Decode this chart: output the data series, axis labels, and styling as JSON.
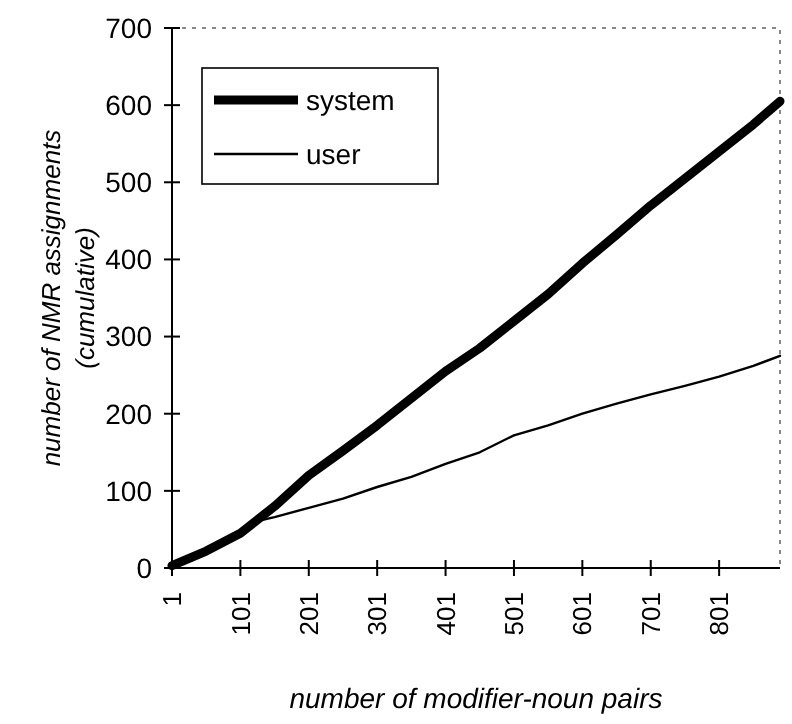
{
  "chart_data": {
    "type": "line",
    "xlabel": "number of modifier-noun pairs",
    "ylabel": "number of NMR assignments\n(cumulative)",
    "xlim": [
      1,
      890
    ],
    "xticks": [
      1,
      101,
      201,
      301,
      401,
      501,
      601,
      701,
      801
    ],
    "ylim": [
      0,
      700
    ],
    "yticks": [
      0,
      100,
      200,
      300,
      400,
      500,
      600,
      700
    ],
    "legend": "top left",
    "grid": false,
    "marker": "none",
    "series": [
      {
        "name": "system",
        "color": "#000000",
        "x": [
          1,
          51,
          101,
          151,
          201,
          251,
          301,
          351,
          401,
          451,
          501,
          551,
          601,
          651,
          701,
          751,
          801,
          851,
          890
        ],
        "values": [
          3,
          22,
          45,
          80,
          120,
          152,
          185,
          220,
          255,
          285,
          320,
          355,
          395,
          432,
          470,
          505,
          540,
          575,
          605
        ]
      },
      {
        "name": "user",
        "color": "#000000",
        "x": [
          1,
          51,
          101,
          121,
          151,
          201,
          251,
          301,
          351,
          401,
          451,
          501,
          551,
          601,
          651,
          701,
          751,
          801,
          851,
          890
        ],
        "values": [
          3,
          22,
          45,
          60,
          66,
          78,
          90,
          105,
          118,
          135,
          150,
          172,
          185,
          200,
          213,
          225,
          236,
          248,
          262,
          275
        ]
      }
    ]
  }
}
